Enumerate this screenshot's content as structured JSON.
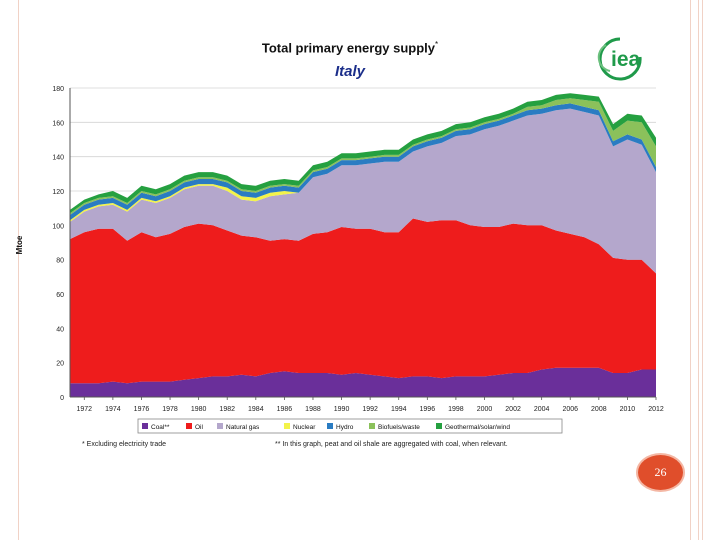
{
  "slide": {
    "title": "Total primary energy supply",
    "title_note": "*",
    "subtitle": "Italy",
    "logo_text": "iea",
    "page_number": "26",
    "footnote_left": "* Excluding electricity trade",
    "footnote_right": "**  In this graph, peat and oil shale are aggregated with coal, when relevant.",
    "colors": {
      "frame": "#f1d2c6",
      "page_badge": "#e04e2b",
      "logo": "#1f9a4a"
    }
  },
  "chart_data": {
    "type": "area",
    "stacked": true,
    "title": "Total primary energy supply*",
    "subtitle": "Italy",
    "xlabel": "",
    "ylabel": "Mtoe",
    "x": [
      1971,
      1972,
      1973,
      1974,
      1975,
      1976,
      1977,
      1978,
      1979,
      1980,
      1981,
      1982,
      1983,
      1984,
      1985,
      1986,
      1987,
      1988,
      1989,
      1990,
      1991,
      1992,
      1993,
      1994,
      1995,
      1996,
      1997,
      1998,
      1999,
      2000,
      2001,
      2002,
      2003,
      2004,
      2005,
      2006,
      2007,
      2008,
      2009,
      2010,
      2011,
      2012
    ],
    "xticks": [
      "1972",
      "1974",
      "1976",
      "1978",
      "1980",
      "1982",
      "1984",
      "1986",
      "1988",
      "1990",
      "1992",
      "1994",
      "1996",
      "1998",
      "2000",
      "2002",
      "2004",
      "2006",
      "2008",
      "2010",
      "2012"
    ],
    "ylim": [
      0,
      180
    ],
    "yticks": [
      "0",
      "20",
      "40",
      "60",
      "80",
      "100",
      "120",
      "140",
      "160",
      "180"
    ],
    "grid": true,
    "legend_position": "bottom",
    "series": [
      {
        "name": "Coal**",
        "color": "#6a2f9a",
        "values": [
          8,
          8,
          8,
          9,
          8,
          9,
          9,
          9,
          10,
          11,
          12,
          12,
          13,
          12,
          14,
          15,
          14,
          14,
          14,
          13,
          14,
          13,
          12,
          11,
          12,
          12,
          11,
          12,
          12,
          12,
          13,
          14,
          14,
          16,
          17,
          17,
          17,
          17,
          14,
          14,
          16,
          16
        ]
      },
      {
        "name": "Oil",
        "color": "#ee1c1c",
        "values": [
          84,
          88,
          90,
          89,
          83,
          87,
          84,
          86,
          89,
          90,
          88,
          85,
          81,
          81,
          77,
          77,
          77,
          81,
          82,
          86,
          84,
          85,
          84,
          85,
          92,
          90,
          92,
          91,
          88,
          87,
          86,
          87,
          86,
          84,
          80,
          78,
          76,
          72,
          67,
          66,
          64,
          56
        ]
      },
      {
        "name": "Natural gas",
        "color": "#b4a7cc",
        "values": [
          10,
          12,
          13,
          14,
          17,
          19,
          20,
          21,
          22,
          22,
          23,
          23,
          21,
          21,
          26,
          26,
          28,
          33,
          34,
          36,
          37,
          38,
          41,
          41,
          39,
          44,
          45,
          49,
          53,
          57,
          59,
          60,
          64,
          65,
          70,
          73,
          73,
          75,
          65,
          70,
          67,
          59
        ]
      },
      {
        "name": "Nuclear",
        "color": "#f3f34a",
        "values": [
          1,
          1,
          1,
          1,
          1,
          1,
          1,
          1,
          1,
          1,
          1,
          2,
          2,
          2,
          2,
          2,
          0,
          0,
          0,
          0,
          0,
          0,
          0,
          0,
          0,
          0,
          0,
          0,
          0,
          0,
          0,
          0,
          0,
          0,
          0,
          0,
          0,
          0,
          0,
          0,
          0,
          0
        ]
      },
      {
        "name": "Hydro",
        "color": "#2a7cc2",
        "values": [
          3,
          3,
          3,
          3,
          3,
          3,
          3,
          3,
          3,
          3,
          3,
          3,
          3,
          3,
          3,
          3,
          3,
          3,
          3,
          3,
          3,
          3,
          3,
          3,
          3,
          3,
          3,
          3,
          3,
          3,
          3,
          3,
          3,
          3,
          3,
          3,
          3,
          3,
          3,
          3,
          3,
          3
        ]
      },
      {
        "name": "Biofuels/waste",
        "color": "#8bc15b",
        "values": [
          1,
          1,
          1,
          1,
          1,
          1,
          1,
          1,
          1,
          1,
          1,
          1,
          1,
          1,
          1,
          1,
          1,
          1,
          1,
          1,
          1,
          1,
          1,
          1,
          1,
          1,
          1,
          1,
          1,
          1,
          1,
          1,
          2,
          2,
          3,
          3,
          4,
          5,
          6,
          8,
          10,
          12
        ]
      },
      {
        "name": "Geothermal/solar/wind",
        "color": "#25a040",
        "values": [
          2,
          2,
          2,
          3,
          3,
          3,
          3,
          3,
          3,
          3,
          3,
          3,
          3,
          3,
          3,
          3,
          3,
          3,
          3,
          3,
          3,
          3,
          3,
          3,
          3,
          3,
          3,
          3,
          3,
          3,
          3,
          3,
          3,
          3,
          3,
          3,
          3,
          3,
          4,
          4,
          4,
          5
        ]
      }
    ]
  }
}
